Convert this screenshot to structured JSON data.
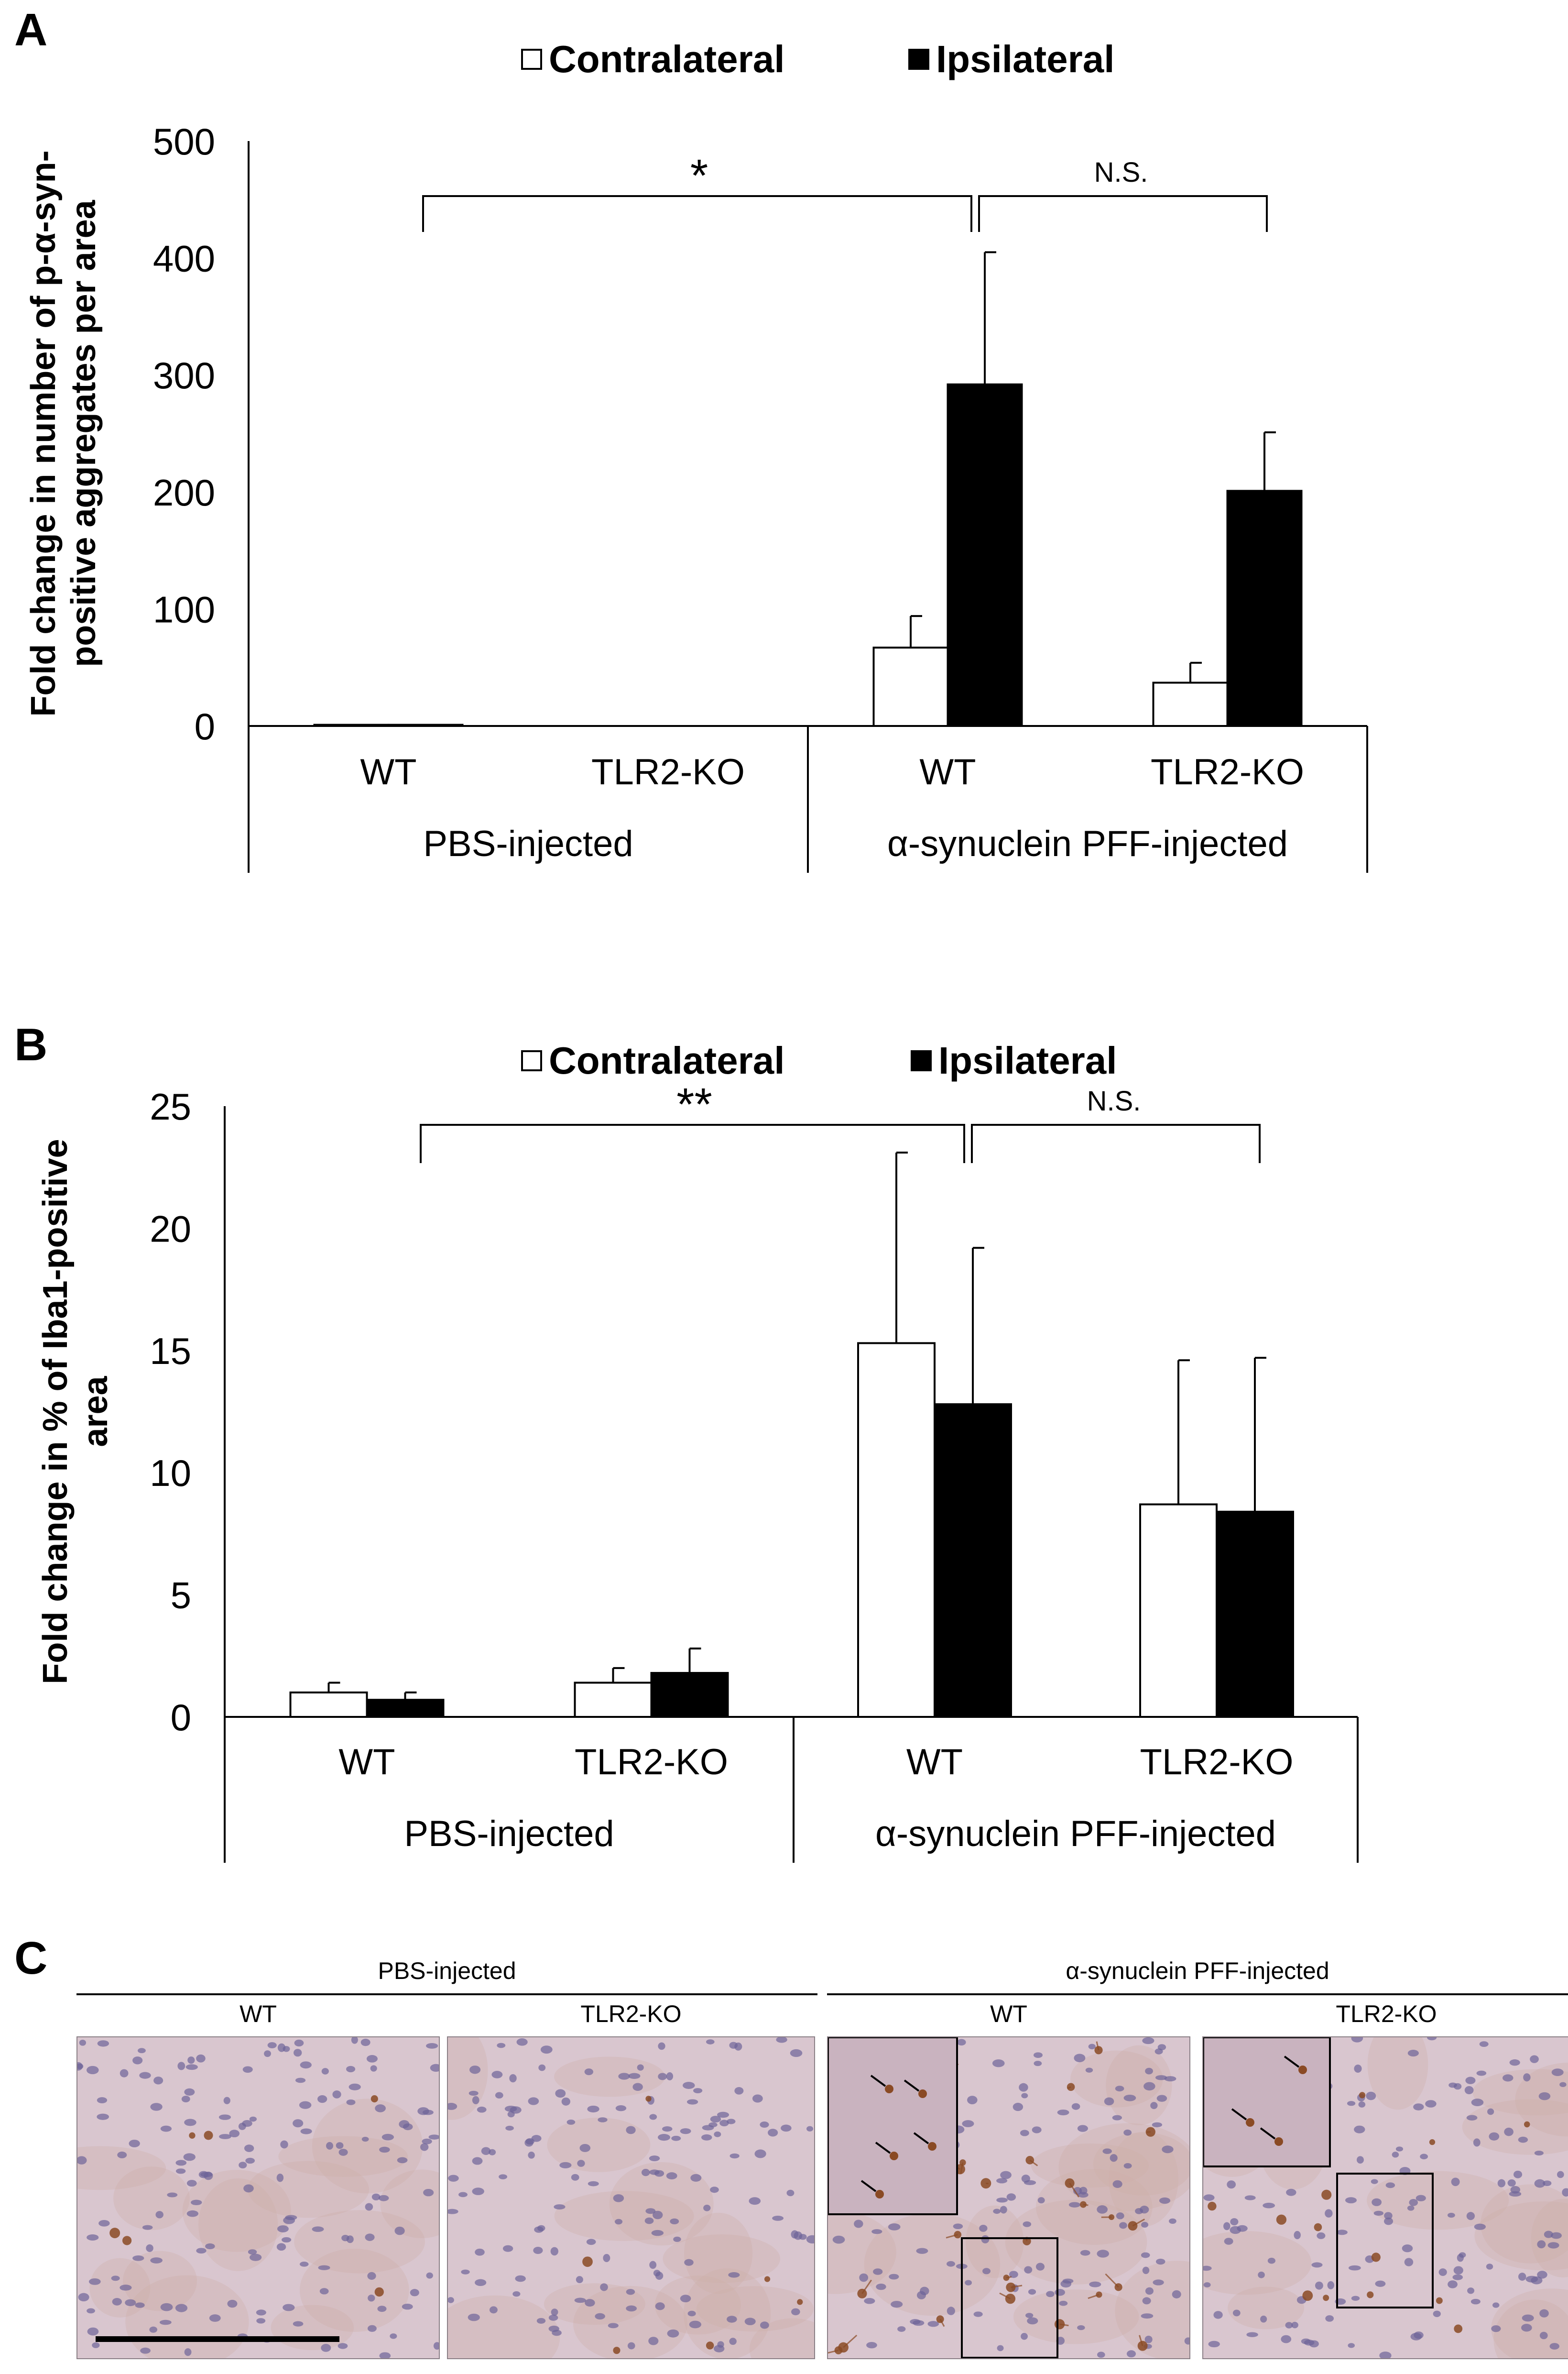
{
  "panels": {
    "A": {
      "letter": "A",
      "legend": {
        "contra": "Contralateral",
        "ipsi": "Ipsilateral"
      },
      "significance": {
        "left": "*",
        "right": "N.S."
      }
    },
    "B": {
      "letter": "B",
      "legend": {
        "contra": "Contralateral",
        "ipsi": "Ipsilateral"
      },
      "significance": {
        "left": "**",
        "right": "N.S."
      }
    },
    "C": {
      "letter": "C",
      "groups": [
        "PBS-injected",
        "α-synuclein PFF-injected"
      ],
      "subtitles": [
        "WT",
        "TLR2-KO",
        "WT",
        "TLR2-KO"
      ]
    }
  },
  "colors": {
    "contralateral": "#ffffff",
    "ipsilateral": "#000000",
    "stain_bg": "#d9c6cf",
    "nuclei": "#6e6499",
    "aggregates": "#8a4a24"
  },
  "chart_data": [
    {
      "panel": "A",
      "type": "bar",
      "title": "",
      "ylabel": "Fold change in number of p-α-syn-positive aggregates per area",
      "ylim": [
        0,
        500
      ],
      "yticks": [
        0,
        100,
        200,
        300,
        400,
        500
      ],
      "categories": [
        "WT",
        "TLR2-KO",
        "WT",
        "TLR2-KO"
      ],
      "groups": [
        "PBS-injected",
        "α-synuclein PFF-injected"
      ],
      "series": [
        {
          "name": "Contralateral",
          "values": [
            1,
            0,
            67,
            37
          ],
          "errors": [
            0,
            0,
            27,
            17
          ]
        },
        {
          "name": "Ipsilateral",
          "values": [
            1,
            0,
            292,
            201
          ],
          "errors": [
            0,
            0,
            113,
            50
          ]
        }
      ],
      "legend_position": "top-center"
    },
    {
      "panel": "B",
      "type": "bar",
      "title": "",
      "ylabel": "Fold change in % of Iba1-positive area",
      "ylim": [
        0,
        25
      ],
      "yticks": [
        0,
        5,
        10,
        15,
        20,
        25
      ],
      "categories": [
        "WT",
        "TLR2-KO",
        "WT",
        "TLR2-KO"
      ],
      "groups": [
        "PBS-injected",
        "α-synuclein PFF-injected"
      ],
      "series": [
        {
          "name": "Contralateral",
          "values": [
            1.0,
            1.4,
            15.3,
            8.7
          ],
          "errors": [
            0.4,
            0.6,
            7.8,
            5.9
          ]
        },
        {
          "name": "Ipsilateral",
          "values": [
            0.7,
            1.8,
            12.8,
            8.4
          ],
          "errors": [
            0.3,
            1.0,
            6.4,
            6.3
          ]
        }
      ],
      "legend_position": "top-center"
    }
  ]
}
